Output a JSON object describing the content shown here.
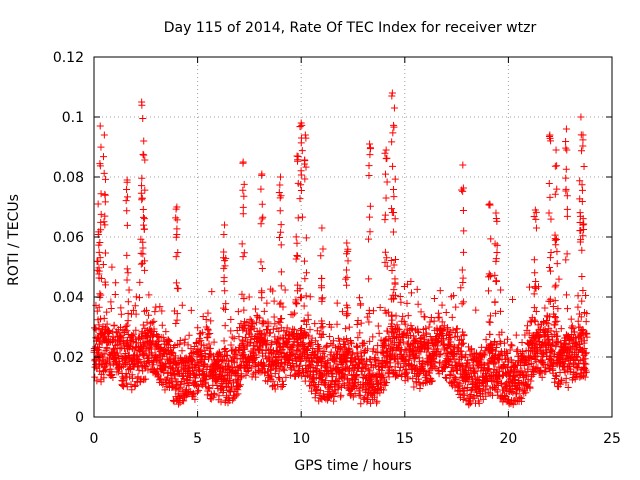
{
  "chart_data": {
    "type": "scatter",
    "title": "Day 115 of 2014, Rate Of TEC Index for receiver wtzr",
    "xlabel": "GPS time / hours",
    "ylabel": "ROTI / TECUs",
    "xlim": [
      0,
      25
    ],
    "ylim": [
      0,
      0.12
    ],
    "xticks": [
      0,
      5,
      10,
      15,
      20,
      25
    ],
    "xtick_labels": [
      "0",
      "5",
      "10",
      "15",
      "20",
      "25"
    ],
    "yticks": [
      0,
      0.02,
      0.04,
      0.06,
      0.08,
      0.1,
      0.12
    ],
    "ytick_labels": [
      "0",
      "0.02",
      "0.04",
      "0.06",
      "0.08",
      "0.1",
      "0.12"
    ],
    "grid": true,
    "marker": "plus",
    "color": "#ff0000",
    "series": [
      {
        "name": "ROTI",
        "x_range_hours": [
          0,
          23.8
        ],
        "typical_band": [
          0.005,
          0.035
        ],
        "min_value": 0.004,
        "peaks": [
          {
            "x": 0.2,
            "y": 0.071
          },
          {
            "x": 0.3,
            "y": 0.097
          },
          {
            "x": 0.5,
            "y": 0.094
          },
          {
            "x": 1.6,
            "y": 0.079
          },
          {
            "x": 2.3,
            "y": 0.105
          },
          {
            "x": 2.4,
            "y": 0.092
          },
          {
            "x": 4.0,
            "y": 0.07
          },
          {
            "x": 6.3,
            "y": 0.064
          },
          {
            "x": 7.2,
            "y": 0.085
          },
          {
            "x": 8.1,
            "y": 0.081
          },
          {
            "x": 9.0,
            "y": 0.08
          },
          {
            "x": 9.8,
            "y": 0.087
          },
          {
            "x": 10.0,
            "y": 0.098
          },
          {
            "x": 10.2,
            "y": 0.094
          },
          {
            "x": 11.0,
            "y": 0.063
          },
          {
            "x": 12.2,
            "y": 0.058
          },
          {
            "x": 13.3,
            "y": 0.091
          },
          {
            "x": 14.1,
            "y": 0.089
          },
          {
            "x": 14.4,
            "y": 0.108
          },
          {
            "x": 14.5,
            "y": 0.103
          },
          {
            "x": 17.8,
            "y": 0.084
          },
          {
            "x": 19.1,
            "y": 0.071
          },
          {
            "x": 19.4,
            "y": 0.068
          },
          {
            "x": 21.3,
            "y": 0.069
          },
          {
            "x": 22.0,
            "y": 0.094
          },
          {
            "x": 22.3,
            "y": 0.089
          },
          {
            "x": 22.8,
            "y": 0.096
          },
          {
            "x": 23.5,
            "y": 0.1
          },
          {
            "x": 23.6,
            "y": 0.094
          }
        ]
      }
    ]
  }
}
